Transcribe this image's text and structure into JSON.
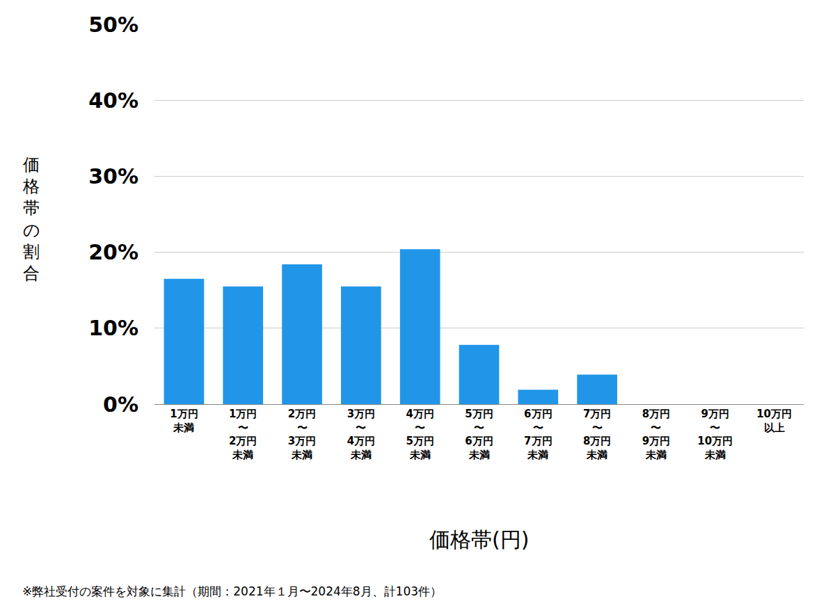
{
  "chart_data": {
    "type": "bar",
    "categories": [
      "1万円\n未満",
      "1万円\n〜\n2万円\n未満",
      "2万円\n〜\n3万円\n未満",
      "3万円\n〜\n4万円\n未満",
      "4万円\n〜\n5万円\n未満",
      "5万円\n〜\n6万円\n未満",
      "6万円\n〜\n7万円\n未満",
      "7万円\n〜\n8万円\n未満",
      "8万円\n〜\n9万円\n未満",
      "9万円\n〜\n10万円\n未満",
      "10万円\n以上"
    ],
    "values": [
      16.5,
      15.5,
      18.4,
      15.5,
      20.4,
      7.8,
      1.9,
      3.9,
      0,
      0,
      0
    ],
    "color": "#2196e8",
    "ylim": [
      0,
      50
    ],
    "yticks": [
      {
        "value": 0,
        "label": "0%"
      },
      {
        "value": 10,
        "label": "10%"
      },
      {
        "value": 20,
        "label": "20%"
      },
      {
        "value": 30,
        "label": "30%"
      },
      {
        "value": 40,
        "label": "40%"
      },
      {
        "value": 50,
        "label": "50%"
      }
    ],
    "grid": true,
    "xlabel": "価格帯(円)",
    "ylabel": "価格帯の割合",
    "footnote": "※弊社受付の案件を対象に集計（期間：2021年１月〜2024年8月、計103件）"
  }
}
